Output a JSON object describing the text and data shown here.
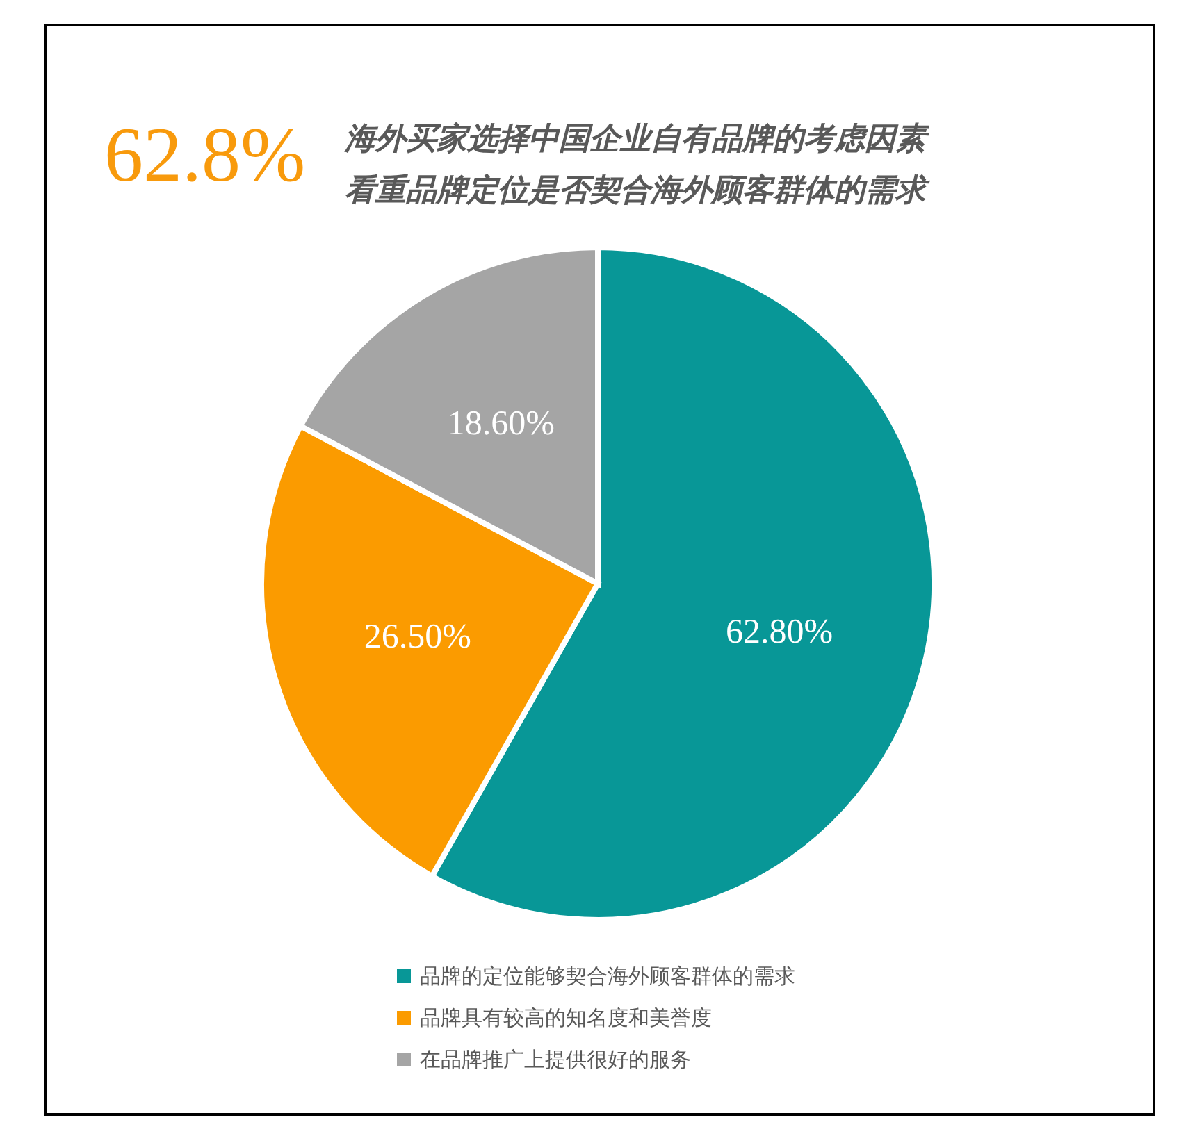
{
  "chart_data": {
    "type": "pie",
    "title": "海外买家选择中国企业自有品牌的考虑因素",
    "subtitle": "看重品牌定位是否契合海外顾客群体的需求",
    "annotations": [
      "62.8%"
    ],
    "categories": [
      "品牌的定位能够契合海外顾客群体的需求",
      "品牌具有较高的知名度和美誉度",
      "在品牌推广上提供很好的服务"
    ],
    "values": [
      62.8,
      26.5,
      18.6
    ],
    "colors": [
      "#089797",
      "#fb9b00",
      "#a5a5a5"
    ],
    "value_labels": [
      "62.80%",
      "26.50%",
      "18.60%"
    ],
    "legend": "bottom"
  }
}
